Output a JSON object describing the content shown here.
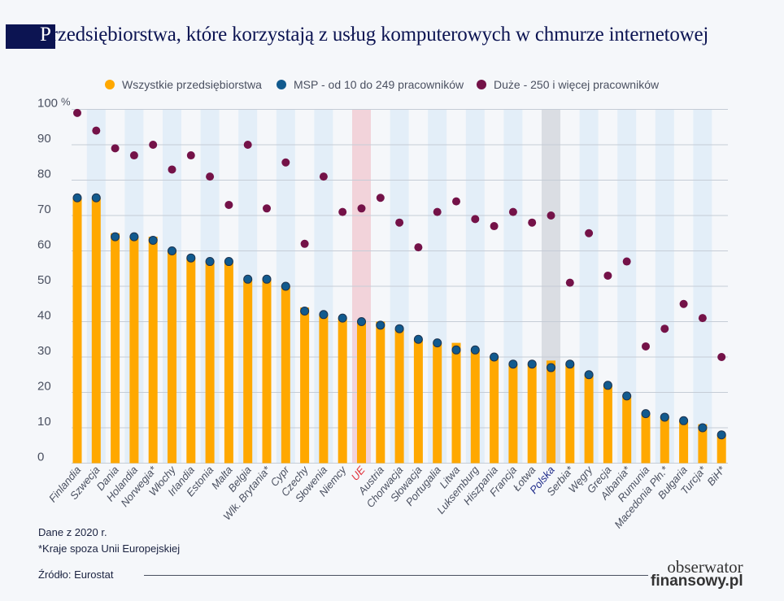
{
  "title": {
    "first_letter": "P",
    "rest": "rzedsiębiorstwa, które korzystają z usług komputerowych w chmurze internetowej"
  },
  "footer": {
    "data_year": "Dane z  2020 r.",
    "note": "*Kraje spoza Unii Europejskiej",
    "source": "Źródło: Eurostat"
  },
  "logo": {
    "line1": "obserwator",
    "line2": "finansowy.pl"
  },
  "colors": {
    "all": "#ffa800",
    "msp": "#115a8e",
    "large": "#741248",
    "eu_label": "#e0303a",
    "pl_label": "#1f2c8a",
    "band": "#e3eef8",
    "eu_band": "#f2d3da",
    "pl_band": "#dadde3"
  },
  "chart_data": {
    "type": "bar",
    "ylim": [
      0,
      100
    ],
    "yticks": [
      "0",
      "10",
      "20",
      "30",
      "40",
      "50",
      "60",
      "70",
      "80",
      "90",
      "100"
    ],
    "yunit": "%",
    "grid": true,
    "legend_position": "top",
    "categories": [
      "Finlandia",
      "Szwecja",
      "Dania",
      "Holandia",
      "Norwegia*",
      "Włochy",
      "Irlandia",
      "Estonia",
      "Malta",
      "Belgia",
      "Wlk. Brytania*",
      "Cypr",
      "Czechy",
      "Słowenia",
      "Niemcy",
      "UE",
      "Austria",
      "Chorwacja",
      "Słowacja",
      "Portugalia",
      "Litwa",
      "Luksemburg",
      "Hiszpania",
      "Francja",
      "Łotwa",
      "Polska",
      "Serbia*",
      "Węgry",
      "Grecja",
      "Albania*",
      "Rumunia",
      "Macedonia Płn.*",
      "Bułgaria",
      "Turcja*",
      "BiH*"
    ],
    "series": [
      {
        "name": "Wszystkie przedsiębiorstwa",
        "kind": "bar",
        "values": [
          75,
          75,
          65,
          64,
          64,
          60,
          58,
          57,
          57,
          52,
          52,
          50,
          44,
          42,
          41,
          40,
          40,
          38,
          35,
          34,
          34,
          32,
          30,
          28,
          28,
          29,
          28,
          25,
          22,
          19,
          14,
          13,
          12,
          11,
          8
        ]
      },
      {
        "name": "MSP - od 10 do 249 pracowników",
        "kind": "dot",
        "values": [
          75,
          75,
          64,
          64,
          63,
          60,
          58,
          57,
          57,
          52,
          52,
          50,
          43,
          42,
          41,
          40,
          39,
          38,
          35,
          34,
          32,
          32,
          30,
          28,
          28,
          27,
          28,
          25,
          22,
          19,
          14,
          13,
          12,
          10,
          8
        ]
      },
      {
        "name": "Duże - 250 i więcej pracowników",
        "kind": "dot",
        "values": [
          99,
          94,
          89,
          87,
          90,
          83,
          87,
          81,
          73,
          90,
          72,
          85,
          62,
          81,
          71,
          72,
          75,
          68,
          61,
          71,
          74,
          69,
          67,
          71,
          68,
          70,
          51,
          65,
          53,
          57,
          33,
          38,
          45,
          41,
          30
        ]
      }
    ]
  }
}
